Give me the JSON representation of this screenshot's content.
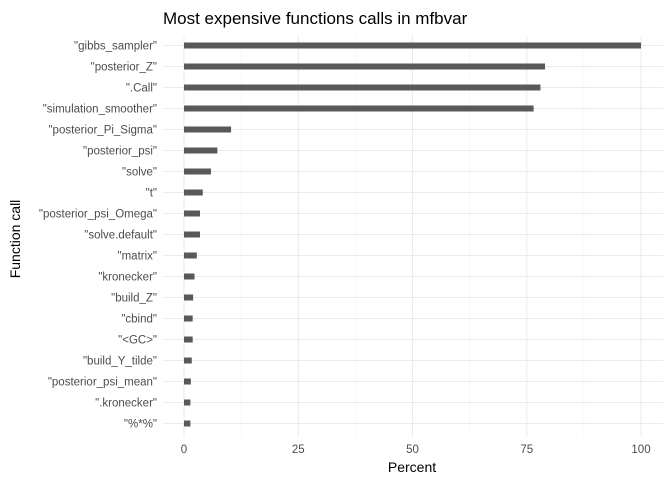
{
  "chart_data": {
    "type": "bar",
    "orientation": "horizontal",
    "title": "Most expensive functions calls in mfbvar",
    "xlabel": "Percent",
    "ylabel": "Function call",
    "xlim": [
      0,
      100
    ],
    "x_ticks": [
      0,
      25,
      50,
      75,
      100
    ],
    "grid": true,
    "bar_color": "#595959",
    "categories": [
      "\"gibbs_sampler\"",
      "\"posterior_Z\"",
      "\".Call\"",
      "\"simulation_smoother\"",
      "\"posterior_Pi_Sigma\"",
      "\"posterior_psi\"",
      "\"solve\"",
      "\"t\"",
      "\"posterior_psi_Omega\"",
      "\"solve.default\"",
      "\"matrix\"",
      "\"kronecker\"",
      "\"build_Z\"",
      "\"cbind\"",
      "\"<GC>\"",
      "\"build_Y_tilde\"",
      "\"posterior_psi_mean\"",
      "\".kronecker\"",
      "\"%*%\""
    ],
    "values": [
      100,
      79,
      78,
      76.5,
      10.3,
      7.3,
      5.9,
      4.1,
      3.5,
      3.5,
      2.8,
      2.3,
      2.0,
      1.9,
      1.9,
      1.7,
      1.5,
      1.4,
      1.4
    ]
  }
}
